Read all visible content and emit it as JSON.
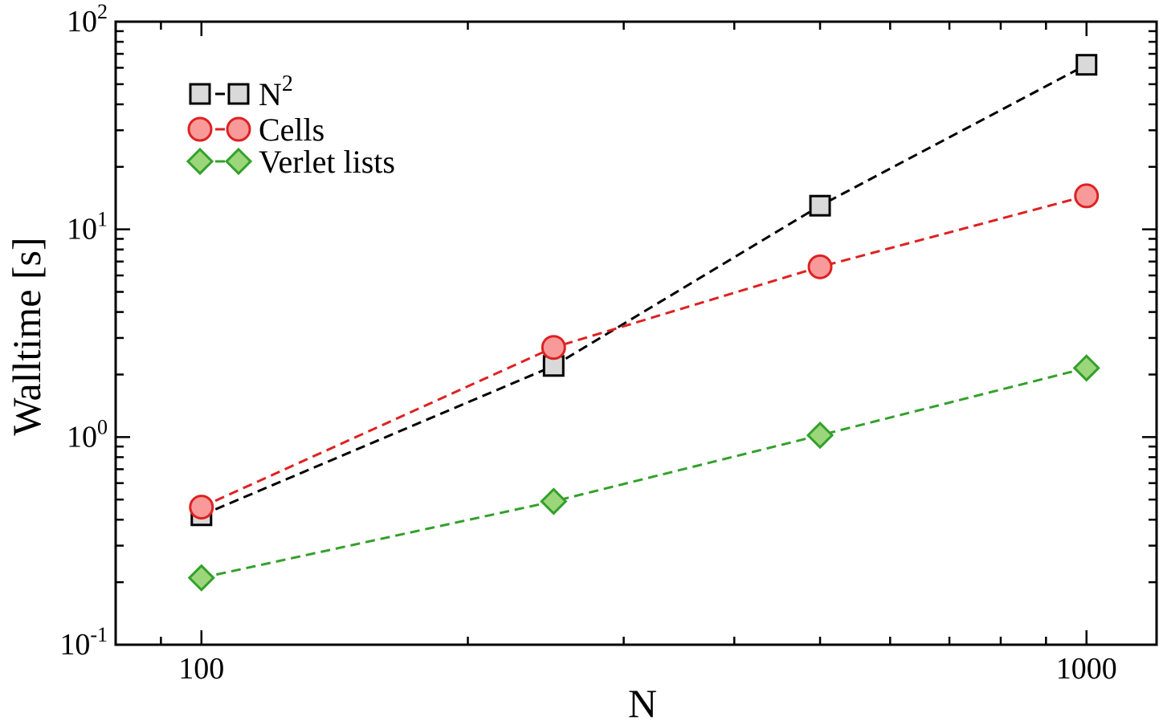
{
  "chart_data": {
    "type": "line",
    "xlabel": "N",
    "ylabel": "Walltime [s]",
    "xscale": "log",
    "yscale": "log",
    "xlim": [
      80,
      1200
    ],
    "ylim": [
      0.1,
      100
    ],
    "x_tick_labels": [
      {
        "value": 100,
        "label": "100"
      },
      {
        "value": 1000,
        "label": "1000"
      }
    ],
    "y_tick_labels": [
      {
        "value": 0.1,
        "base": "10",
        "exp": "-1"
      },
      {
        "value": 1,
        "base": "10",
        "exp": "0"
      },
      {
        "value": 10,
        "base": "10",
        "exp": "1"
      },
      {
        "value": 100,
        "base": "10",
        "exp": "2"
      }
    ],
    "legend_position": "top-left",
    "grid": false,
    "series": [
      {
        "name": "N",
        "name_superscript": "2",
        "marker": "square",
        "line_color": "#000000",
        "marker_fill": "#d9d9d9",
        "marker_stroke": "#000000",
        "x": [
          100,
          250,
          500,
          1000
        ],
        "y": [
          0.42,
          2.2,
          13,
          62
        ]
      },
      {
        "name": "Cells",
        "marker": "circle",
        "line_color": "#dd2222",
        "marker_fill": "#f99a9a",
        "marker_stroke": "#dd2222",
        "x": [
          100,
          250,
          500,
          1000
        ],
        "y": [
          0.46,
          2.7,
          6.6,
          14.5
        ]
      },
      {
        "name": "Verlet lists",
        "marker": "diamond",
        "line_color": "#33a02c",
        "marker_fill": "#9bd77a",
        "marker_stroke": "#33a02c",
        "x": [
          100,
          250,
          500,
          1000
        ],
        "y": [
          0.21,
          0.49,
          1.02,
          2.15
        ]
      }
    ]
  }
}
